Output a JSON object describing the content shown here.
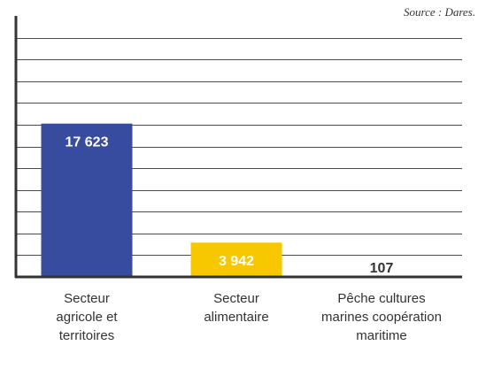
{
  "source": "Source : Dares.",
  "chart_data": {
    "type": "bar",
    "categories": [
      [
        "Secteur",
        "agricole et",
        "territoires"
      ],
      [
        "Secteur",
        "alimentaire"
      ],
      [
        "Pêche cultures",
        "marines coopération",
        "maritime"
      ]
    ],
    "values": [
      17623,
      3942,
      107
    ],
    "value_labels": [
      "17 623",
      "3 942",
      "107"
    ],
    "colors": [
      "#374c9e",
      "#f7c800",
      "#58a83a"
    ],
    "value_label_colors": [
      "#ffffff",
      "#ffffff",
      "#333333"
    ],
    "ylim": [
      0,
      30000
    ],
    "grid_step": 2500,
    "grid": true,
    "title": "",
    "xlabel": "",
    "ylabel": ""
  }
}
